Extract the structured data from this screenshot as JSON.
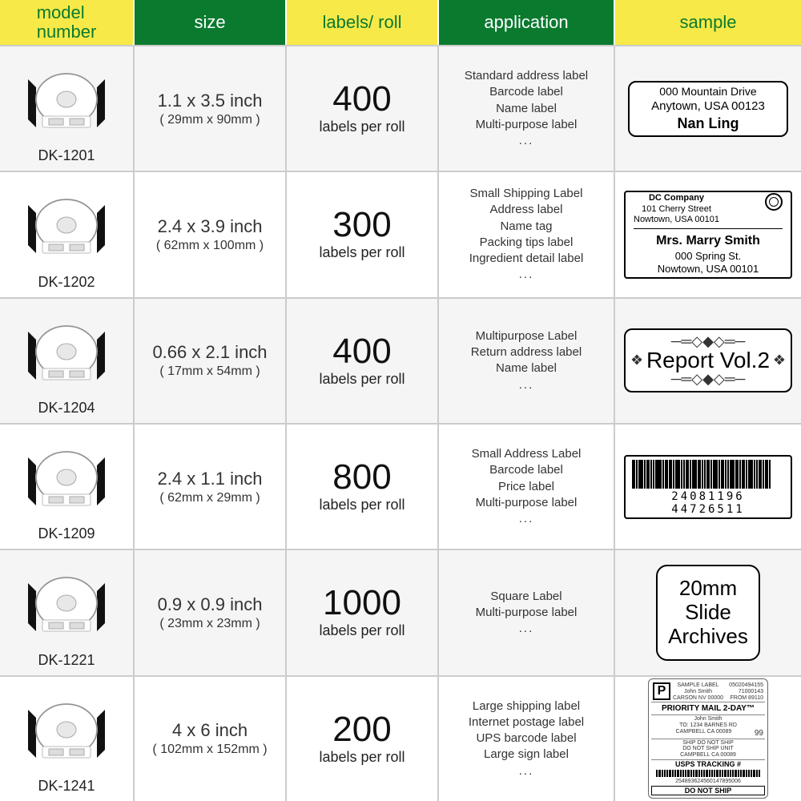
{
  "headers": {
    "model": "model\nnumber",
    "size": "size",
    "labels": "labels/ roll",
    "application": "application",
    "sample": "sample"
  },
  "header_colors": {
    "yellow_bg": "#f7e948",
    "green_bg": "#0a7a2f",
    "yellow_text": "#0a7a2f",
    "green_text": "#ffffff"
  },
  "labels_suffix": "labels per roll",
  "rows": [
    {
      "model": "DK-1201",
      "size_main": "1.1 x 3.5 inch",
      "size_sub": "( 29mm x 90mm )",
      "labels": "400",
      "apps": [
        "Standard address label",
        "Barcode label",
        "Name label",
        "Multi-purpose label",
        "..."
      ],
      "sample": {
        "type": "address1",
        "line1": "000 Mountain Drive",
        "line2": "Anytown, USA 00123",
        "line3": "Nan Ling"
      }
    },
    {
      "model": "DK-1202",
      "size_main": "2.4 x 3.9 inch",
      "size_sub": "( 62mm x 100mm )",
      "labels": "300",
      "apps": [
        "Small Shipping Label",
        "Address label",
        "Name tag",
        "Packing tips label",
        "Ingredient detail label",
        "..."
      ],
      "sample": {
        "type": "shipping",
        "from1": "DC Company",
        "from2": "101 Cherry Street",
        "from3": "Nowtown, USA 00101",
        "to1": "Mrs. Marry Smith",
        "to2": "000 Spring St.",
        "to3": "Nowtown, USA 00101"
      }
    },
    {
      "model": "DK-1204",
      "size_main": "0.66 x 2.1 inch",
      "size_sub": "( 17mm x 54mm )",
      "labels": "400",
      "apps": [
        "Multipurpose Label",
        "Return address label",
        "Name label",
        "..."
      ],
      "sample": {
        "type": "report",
        "text": "Report Vol.2"
      }
    },
    {
      "model": "DK-1209",
      "size_main": "2.4 x 1.1 inch",
      "size_sub": "( 62mm x 29mm )",
      "labels": "800",
      "apps": [
        "Small Address Label",
        "Barcode label",
        "Price label",
        "Multi-purpose label",
        "..."
      ],
      "sample": {
        "type": "barcode",
        "number": "24081196 44726511"
      }
    },
    {
      "model": "DK-1221",
      "size_main": "0.9 x 0.9 inch",
      "size_sub": "( 23mm x 23mm )",
      "labels": "1000",
      "apps": [
        "Square Label",
        "Multi-purpose label",
        "..."
      ],
      "sample": {
        "type": "square",
        "line1": "20mm",
        "line2": "Slide",
        "line3": "Archives"
      }
    },
    {
      "model": "DK-1241",
      "size_main": "4 x 6 inch",
      "size_sub": "( 102mm x 152mm )",
      "labels": "200",
      "apps": [
        "Large shipping label",
        "Internet postage label",
        "UPS barcode label",
        "Large sign label",
        "..."
      ],
      "sample": {
        "type": "usps",
        "priority": "PRIORITY MAIL 2-DAY™",
        "p": "P",
        "tracking_label": "USPS TRACKING #",
        "tracking_num": "254893624560147895006",
        "dns": "DO NOT SHIP"
      }
    }
  ]
}
